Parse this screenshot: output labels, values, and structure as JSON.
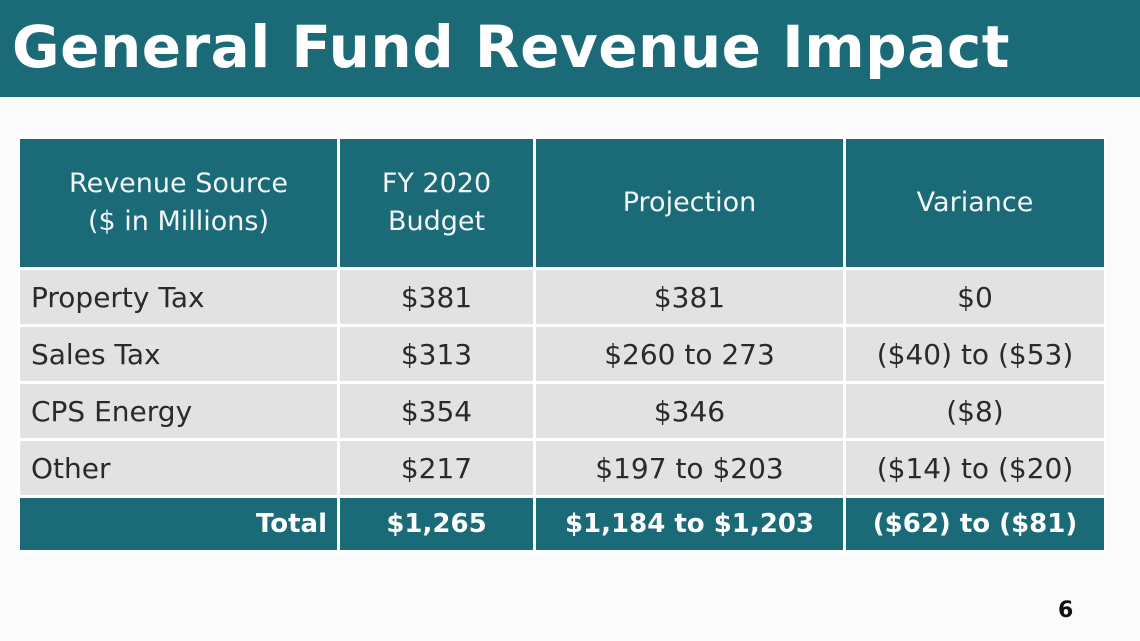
{
  "slide": {
    "title": "General Fund Revenue Impact",
    "page_number": "6"
  },
  "table": {
    "headers": [
      {
        "line1": "Revenue Source",
        "line2": "($ in Millions)"
      },
      {
        "line1": "FY 2020",
        "line2": "Budget"
      },
      {
        "line1": "Projection",
        "line2": ""
      },
      {
        "line1": "Variance",
        "line2": ""
      }
    ],
    "rows": [
      {
        "source": "Property Tax",
        "budget": "$381",
        "projection": "$381",
        "variance": "$0"
      },
      {
        "source": "Sales Tax",
        "budget": "$313",
        "projection": "$260 to 273",
        "variance": "($40) to ($53)"
      },
      {
        "source": "CPS Energy",
        "budget": "$354",
        "projection": "$346",
        "variance": "($8)"
      },
      {
        "source": "Other",
        "budget": "$217",
        "projection": "$197 to $203",
        "variance": "($14) to ($20)"
      }
    ],
    "total": {
      "source": "Total",
      "budget": "$1,265",
      "projection": "$1,184 to $1,203",
      "variance": "($62) to ($81)"
    }
  },
  "colors": {
    "accent": "#1a6b77",
    "row_bg": "#e2e2e2",
    "background": "#fbfbfb"
  }
}
